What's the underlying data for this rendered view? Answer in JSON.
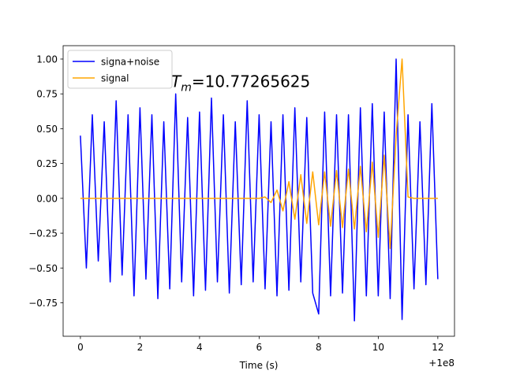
{
  "chart_data": {
    "type": "line",
    "x_label": "Time (s)",
    "x_offset_label": "+1e8",
    "annotation": {
      "text": "T",
      "subscript": "m",
      "suffix": "=10.77265625"
    },
    "x": [
      0,
      0.2,
      0.4,
      0.6,
      0.8,
      1.0,
      1.2,
      1.4,
      1.6,
      1.8,
      2.0,
      2.2,
      2.4,
      2.6,
      2.8,
      3.0,
      3.2,
      3.4,
      3.6,
      3.8,
      4.0,
      4.2,
      4.4,
      4.6,
      4.8,
      5.0,
      5.2,
      5.4,
      5.6,
      5.8,
      6.0,
      6.2,
      6.4,
      6.6,
      6.8,
      7.0,
      7.2,
      7.4,
      7.6,
      7.8,
      8.0,
      8.2,
      8.4,
      8.6,
      8.8,
      9.0,
      9.2,
      9.4,
      9.6,
      9.8,
      10.0,
      10.2,
      10.4,
      10.6,
      10.8,
      11.0,
      11.2,
      11.4,
      11.6,
      11.8,
      12.0
    ],
    "series": [
      {
        "name": "signa+noise",
        "color": "#0000ff",
        "values": [
          0.45,
          -0.5,
          0.6,
          -0.45,
          0.55,
          -0.6,
          0.7,
          -0.55,
          0.6,
          -0.7,
          0.65,
          -0.58,
          0.6,
          -0.72,
          0.55,
          -0.65,
          0.75,
          -0.6,
          0.58,
          -0.7,
          0.62,
          -0.66,
          0.72,
          -0.6,
          0.6,
          -0.68,
          0.55,
          -0.62,
          0.7,
          -0.6,
          0.6,
          -0.65,
          0.55,
          -0.7,
          0.6,
          -0.66,
          0.65,
          -0.6,
          0.58,
          -0.68,
          -0.83,
          0.62,
          -0.7,
          0.6,
          -0.68,
          0.6,
          -0.88,
          0.65,
          -0.7,
          0.68,
          -0.7,
          0.62,
          -0.72,
          1.0,
          -0.87,
          0.6,
          -0.65,
          0.55,
          -0.62,
          0.68,
          -0.58
        ]
      },
      {
        "name": "signal",
        "color": "#ffa500",
        "values": [
          0,
          0,
          0,
          0,
          0,
          0,
          0,
          0,
          0,
          0,
          0,
          0,
          0,
          0,
          0,
          0,
          0,
          0,
          0,
          0,
          0,
          0,
          0,
          0,
          0,
          0,
          0,
          0,
          0,
          0,
          0,
          0.01,
          -0.03,
          0.06,
          -0.09,
          0.12,
          -0.15,
          0.17,
          -0.18,
          0.19,
          -0.19,
          0.19,
          -0.2,
          0.2,
          -0.21,
          0.21,
          -0.22,
          0.23,
          -0.24,
          0.26,
          -0.28,
          0.31,
          -0.36,
          0.45,
          1.0,
          0.01,
          0,
          0,
          0,
          0,
          0
        ]
      }
    ],
    "xlim": [
      -0.58,
      12.56
    ],
    "ylim": [
      -0.99,
      1.096
    ],
    "xticks": [
      0,
      2,
      4,
      6,
      8,
      10,
      12
    ],
    "yticks": [
      {
        "value": -0.75,
        "label": "−0.75"
      },
      {
        "value": -0.5,
        "label": "−0.50"
      },
      {
        "value": -0.25,
        "label": "−0.25"
      },
      {
        "value": 0,
        "label": "0.00"
      },
      {
        "value": 0.25,
        "label": "0.25"
      },
      {
        "value": 0.5,
        "label": "0.50"
      },
      {
        "value": 0.75,
        "label": "0.75"
      },
      {
        "value": 1.0,
        "label": "1.00"
      }
    ],
    "legend": "upper left",
    "grid": false
  }
}
